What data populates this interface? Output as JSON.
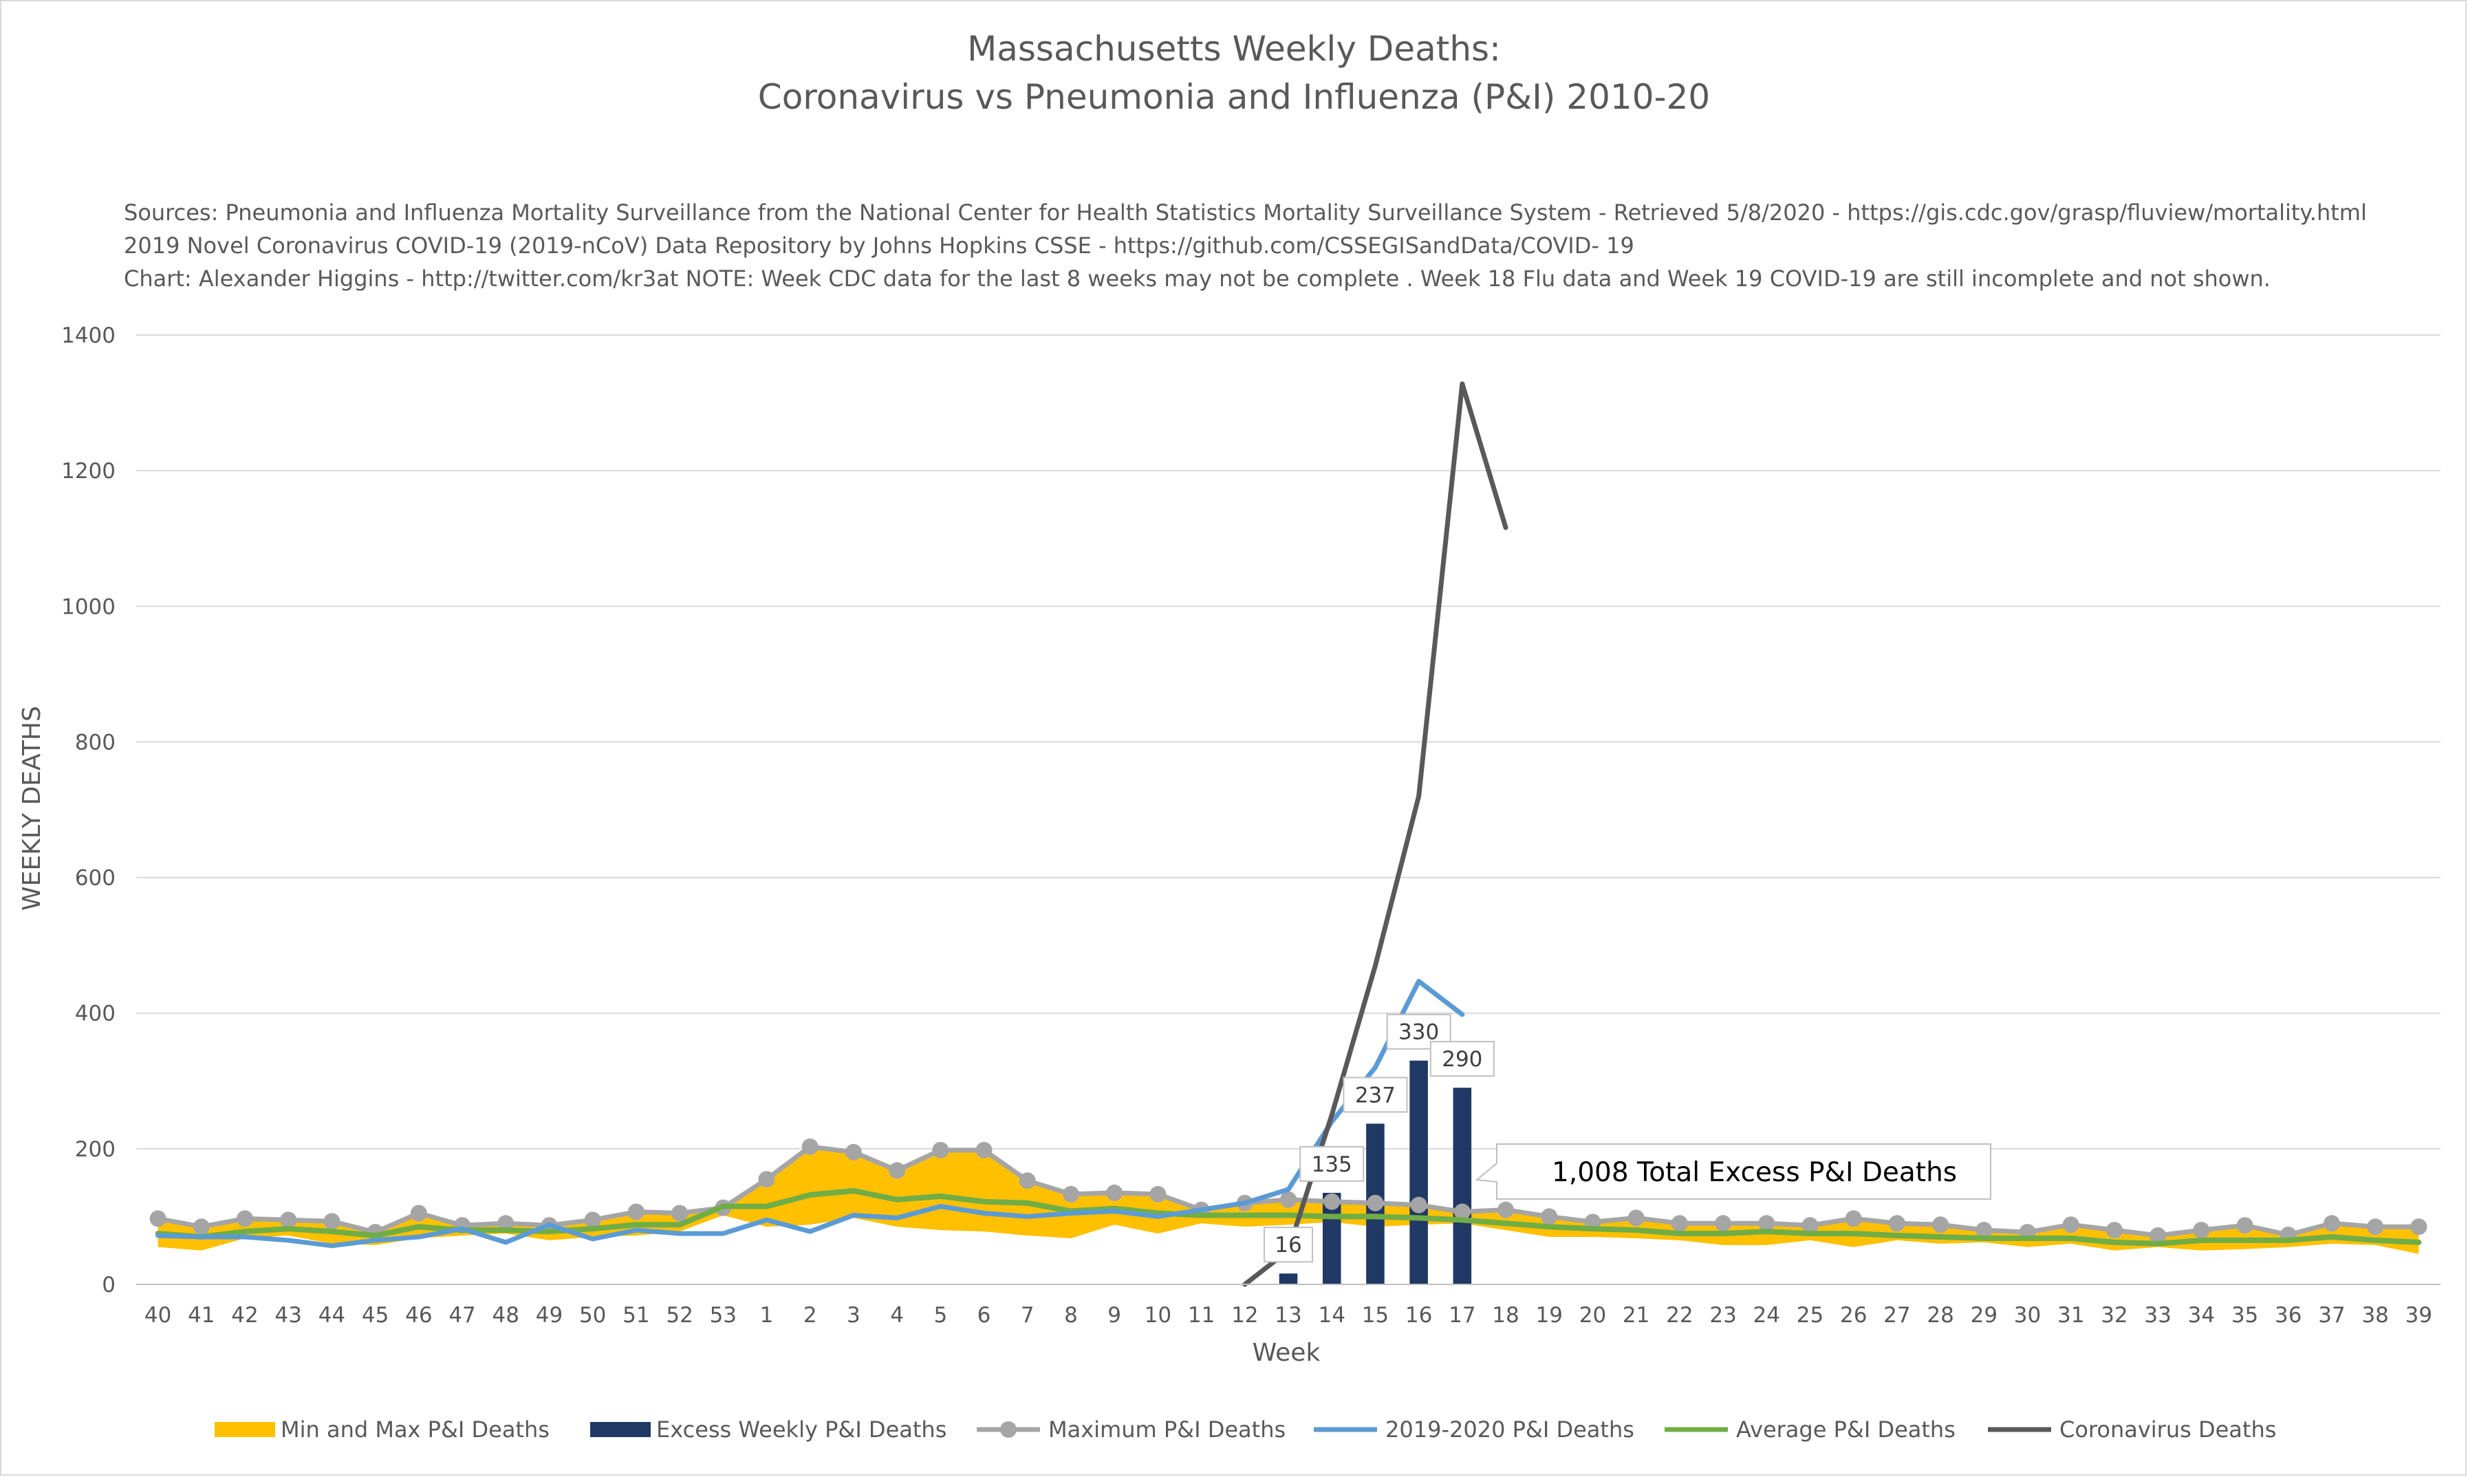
{
  "chart_data": {
    "type": "line",
    "title": "Massachusetts Weekly Deaths:",
    "subtitle": "Coronavirus vs Pneumonia and Influenza (P&I) 2010-20",
    "sources": [
      "Sources: Pneumonia and Influenza Mortality Surveillance from the National Center for Health Statistics Mortality Surveillance System - Retrieved 5/8/2020 - https://gis.cdc.gov/grasp/fluview/mortality.html",
      "2019 Novel Coronavirus COVID-19 (2019-nCoV) Data Repository by Johns Hopkins CSSE - https://github.com/CSSEGISandData/COVID- 19",
      "Chart: Alexander Higgins - http://twitter.com/kr3at   NOTE: Week CDC data for the last 8 weeks may not be complete . Week 18 Flu data and Week 19 COVID-19 are still incomplete and not shown."
    ],
    "xlabel": "Week",
    "ylabel": "WEEKLY DEATHS",
    "ylim": [
      0,
      1400
    ],
    "yticks": [
      "0",
      "200",
      "400",
      "600",
      "800",
      "1000",
      "1200",
      "1400"
    ],
    "grid": true,
    "legend_position": "bottom",
    "categories": [
      "40",
      "41",
      "42",
      "43",
      "44",
      "45",
      "46",
      "47",
      "48",
      "49",
      "50",
      "51",
      "52",
      "53",
      "1",
      "2",
      "3",
      "4",
      "5",
      "6",
      "7",
      "8",
      "9",
      "10",
      "11",
      "12",
      "13",
      "14",
      "15",
      "16",
      "17",
      "18",
      "19",
      "20",
      "21",
      "22",
      "23",
      "24",
      "25",
      "26",
      "27",
      "28",
      "29",
      "30",
      "31",
      "32",
      "33",
      "34",
      "35",
      "36",
      "37",
      "38",
      "39"
    ],
    "series": [
      {
        "name": "Min and Max P&I Deaths",
        "kind": "band",
        "color": "#ffc000",
        "lower": [
          55,
          50,
          68,
          72,
          60,
          58,
          68,
          72,
          75,
          65,
          70,
          72,
          78,
          102,
          85,
          88,
          98,
          85,
          80,
          78,
          72,
          68,
          88,
          75,
          90,
          85,
          88,
          92,
          85,
          88,
          90,
          80,
          70,
          70,
          68,
          65,
          58,
          58,
          65,
          55,
          65,
          60,
          62,
          55,
          60,
          50,
          55,
          50,
          52,
          55,
          60,
          58,
          45
        ],
        "upper": [
          97,
          85,
          97,
          95,
          93,
          77,
          105,
          87,
          90,
          87,
          95,
          107,
          105,
          113,
          155,
          203,
          195,
          168,
          198,
          198,
          153,
          133,
          135,
          133,
          110,
          120,
          125,
          122,
          120,
          117,
          107,
          110,
          100,
          92,
          98,
          90,
          90,
          90,
          87,
          97,
          90,
          88,
          80,
          77,
          88,
          80,
          72,
          80,
          87,
          73,
          90,
          85,
          85
        ]
      },
      {
        "name": "Excess Weekly P&I Deaths",
        "kind": "bar",
        "color": "#203864",
        "values": [
          null,
          null,
          null,
          null,
          null,
          null,
          null,
          null,
          null,
          null,
          null,
          null,
          null,
          null,
          null,
          null,
          null,
          null,
          null,
          null,
          null,
          null,
          null,
          null,
          null,
          null,
          16,
          135,
          237,
          330,
          290,
          null,
          null,
          null,
          null,
          null,
          null,
          null,
          null,
          null,
          null,
          null,
          null,
          null,
          null,
          null,
          null,
          null,
          null,
          null,
          null,
          null,
          null
        ],
        "data_labels": [
          null,
          null,
          null,
          null,
          null,
          null,
          null,
          null,
          null,
          null,
          null,
          null,
          null,
          null,
          null,
          null,
          null,
          null,
          null,
          null,
          null,
          null,
          null,
          null,
          null,
          null,
          "16",
          "135",
          "237",
          "330",
          "290",
          null,
          null,
          null,
          null,
          null,
          null,
          null,
          null,
          null,
          null,
          null,
          null,
          null,
          null,
          null,
          null,
          null,
          null,
          null,
          null,
          null,
          null
        ]
      },
      {
        "name": "Maximum P&I Deaths",
        "kind": "line-marker",
        "color": "#a5a5a5",
        "values": [
          97,
          85,
          97,
          95,
          93,
          77,
          105,
          87,
          90,
          87,
          95,
          107,
          105,
          113,
          155,
          203,
          195,
          168,
          198,
          198,
          153,
          133,
          135,
          133,
          110,
          120,
          125,
          122,
          120,
          117,
          107,
          110,
          100,
          92,
          98,
          90,
          90,
          90,
          87,
          97,
          90,
          88,
          80,
          77,
          88,
          80,
          72,
          80,
          87,
          73,
          90,
          85,
          85
        ]
      },
      {
        "name": "2019-2020 P&I Deaths",
        "kind": "line",
        "color": "#5b9bd5",
        "values": [
          72,
          70,
          70,
          65,
          57,
          65,
          70,
          82,
          62,
          88,
          67,
          80,
          75,
          75,
          95,
          78,
          102,
          98,
          115,
          105,
          100,
          105,
          108,
          100,
          110,
          120,
          140,
          240,
          320,
          447,
          398,
          null,
          null,
          null,
          null,
          null,
          null,
          null,
          null,
          null,
          null,
          null,
          null,
          null,
          null,
          null,
          null,
          null,
          null,
          null,
          null,
          null,
          null
        ]
      },
      {
        "name": "Average P&I Deaths",
        "kind": "line",
        "color": "#70ad47",
        "values": [
          75,
          70,
          78,
          82,
          78,
          72,
          85,
          80,
          80,
          78,
          82,
          88,
          88,
          115,
          115,
          132,
          138,
          125,
          130,
          122,
          120,
          108,
          112,
          105,
          102,
          102,
          102,
          100,
          100,
          98,
          95,
          90,
          85,
          82,
          80,
          75,
          75,
          78,
          75,
          75,
          72,
          70,
          68,
          68,
          68,
          62,
          60,
          65,
          65,
          65,
          70,
          65,
          62
        ]
      },
      {
        "name": "Coronavirus Deaths",
        "kind": "line",
        "color": "#595959",
        "values": [
          null,
          null,
          null,
          null,
          null,
          null,
          null,
          null,
          null,
          null,
          null,
          null,
          null,
          null,
          null,
          null,
          null,
          null,
          null,
          null,
          null,
          null,
          null,
          null,
          null,
          0,
          50,
          250,
          470,
          720,
          1328,
          1116,
          null,
          null,
          null,
          null,
          null,
          null,
          null,
          null,
          null,
          null,
          null,
          null,
          null,
          null,
          null,
          null,
          null,
          null,
          null,
          null,
          null
        ]
      }
    ],
    "annotations": [
      {
        "text": "1,008 Total Excess P&I Deaths",
        "points_to_week": "17"
      }
    ]
  }
}
